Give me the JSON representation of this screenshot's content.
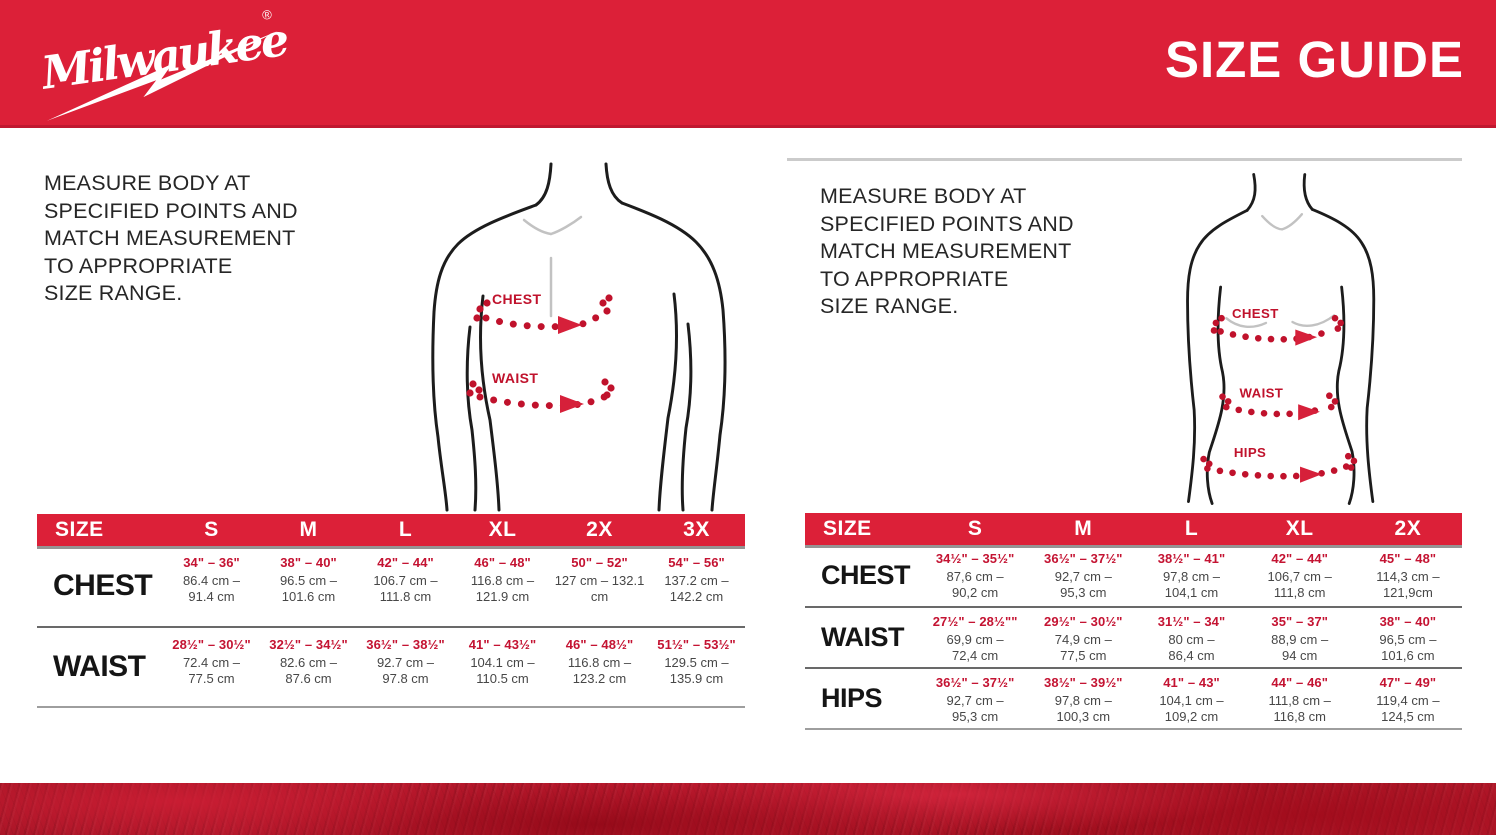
{
  "header": {
    "brand": "Milwaukee",
    "registered_mark": "®",
    "title": "SIZE GUIDE"
  },
  "instructions": {
    "text": "MEASURE BODY AT\nSPECIFIED POINTS AND\nMATCH MEASUREMENT\nTO APPROPRIATE\nSIZE RANGE."
  },
  "panels": [
    {
      "name": "mens",
      "diagram": {
        "chest": "CHEST",
        "waist": "WAIST"
      },
      "table": {
        "corner_label": "SIZE",
        "columns": [
          "S",
          "M",
          "L",
          "XL",
          "2X",
          "3X"
        ],
        "rows": [
          {
            "label": "CHEST",
            "cells": [
              {
                "inches": "34\" – 36\"",
                "cm_line1": "86.4 cm –",
                "cm_line2": "91.4 cm"
              },
              {
                "inches": "38\" – 40\"",
                "cm_line1": "96.5 cm –",
                "cm_line2": "101.6 cm"
              },
              {
                "inches": "42\" – 44\"",
                "cm_line1": "106.7 cm –",
                "cm_line2": "111.8 cm"
              },
              {
                "inches": "46\" – 48\"",
                "cm_line1": "116.8 cm –",
                "cm_line2": "121.9 cm"
              },
              {
                "inches": "50\" – 52\"",
                "cm_line1": "127 cm –  132.1",
                "cm_line2": "cm"
              },
              {
                "inches": "54\" – 56\"",
                "cm_line1": "137.2 cm –",
                "cm_line2": "142.2 cm"
              }
            ]
          },
          {
            "label": "WAIST",
            "cells": [
              {
                "inches": "28½\" – 30½\"",
                "cm_line1": "72.4 cm –",
                "cm_line2": "77.5 cm"
              },
              {
                "inches": "32½\" – 34½\"",
                "cm_line1": "82.6 cm –",
                "cm_line2": "87.6 cm"
              },
              {
                "inches": "36½\" – 38½\"",
                "cm_line1": "92.7 cm –",
                "cm_line2": "97.8 cm"
              },
              {
                "inches": "41\" – 43½\"",
                "cm_line1": "104.1 cm –",
                "cm_line2": "110.5 cm"
              },
              {
                "inches": "46\" – 48½\"",
                "cm_line1": "116.8 cm –",
                "cm_line2": "123.2 cm"
              },
              {
                "inches": "51½\" – 53½\"",
                "cm_line1": "129.5 cm –",
                "cm_line2": "135.9 cm"
              }
            ]
          }
        ]
      }
    },
    {
      "name": "womens",
      "diagram": {
        "chest": "CHEST",
        "waist": "WAIST",
        "hips": "HIPS"
      },
      "table": {
        "corner_label": "SIZE",
        "columns": [
          "S",
          "M",
          "L",
          "XL",
          "2X"
        ],
        "rows": [
          {
            "label": "CHEST",
            "cells": [
              {
                "inches": "34½\" – 35½\"",
                "cm_line1": "87,6 cm –",
                "cm_line2": "90,2 cm"
              },
              {
                "inches": "36½\" – 37½\"",
                "cm_line1": "92,7 cm –",
                "cm_line2": "95,3 cm"
              },
              {
                "inches": "38½\" – 41\"",
                "cm_line1": "97,8 cm –",
                "cm_line2": "104,1 cm"
              },
              {
                "inches": "42\" – 44\"",
                "cm_line1": "106,7 cm –",
                "cm_line2": "111,8 cm"
              },
              {
                "inches": "45\" – 48\"",
                "cm_line1": "114,3 cm –",
                "cm_line2": "121,9cm"
              }
            ]
          },
          {
            "label": "WAIST",
            "cells": [
              {
                "inches": "27½\" – 28½\"\"",
                "cm_line1": "69,9 cm –",
                "cm_line2": "72,4 cm"
              },
              {
                "inches": "29½\" – 30½\"",
                "cm_line1": "74,9 cm –",
                "cm_line2": "77,5 cm"
              },
              {
                "inches": "31½\" – 34\"",
                "cm_line1": "80 cm –",
                "cm_line2": "86,4 cm"
              },
              {
                "inches": "35\" – 37\"",
                "cm_line1": "88,9 cm –",
                "cm_line2": "94 cm"
              },
              {
                "inches": "38\" – 40\"",
                "cm_line1": "96,5 cm –",
                "cm_line2": "101,6 cm"
              }
            ]
          },
          {
            "label": "HIPS",
            "cells": [
              {
                "inches": "36½\" – 37½\"",
                "cm_line1": "92,7 cm –",
                "cm_line2": "95,3 cm"
              },
              {
                "inches": "38½\" – 39½\"",
                "cm_line1": "97,8 cm –",
                "cm_line2": "100,3 cm"
              },
              {
                "inches": "41\" – 43\"",
                "cm_line1": "104,1 cm –",
                "cm_line2": "109,2 cm"
              },
              {
                "inches": "44\" – 46\"",
                "cm_line1": "111,8 cm –",
                "cm_line2": "116,8 cm"
              },
              {
                "inches": "47\" – 49\"",
                "cm_line1": "119,4 cm –",
                "cm_line2": "124,5 cm"
              }
            ]
          }
        ]
      }
    }
  ],
  "colors": {
    "brand_red": "#DC2038",
    "accent_red": "#C41332",
    "dot_red": "#C0122C",
    "footer_red": "#A41323",
    "text_dark": "#262626",
    "cm_gray": "#474747"
  }
}
